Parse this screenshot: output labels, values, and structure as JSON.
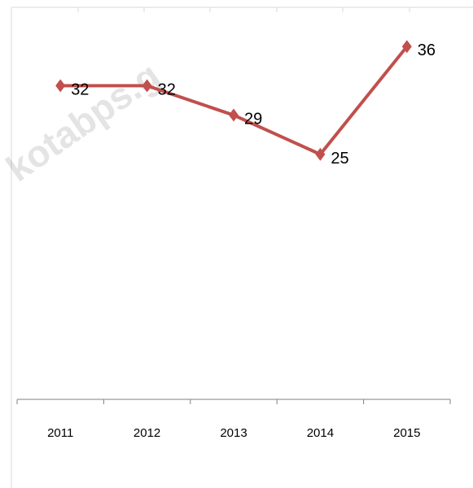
{
  "chart_data": {
    "type": "line",
    "categories": [
      "2011",
      "2012",
      "2013",
      "2014",
      "2015"
    ],
    "series": [
      {
        "values": [
          32,
          32,
          29,
          25,
          36
        ]
      }
    ],
    "ylim": [
      0,
      40
    ],
    "grid": false,
    "legend": "none",
    "line_color": "#c0504d",
    "marker": "diamond",
    "watermark": "kotabps.g"
  }
}
